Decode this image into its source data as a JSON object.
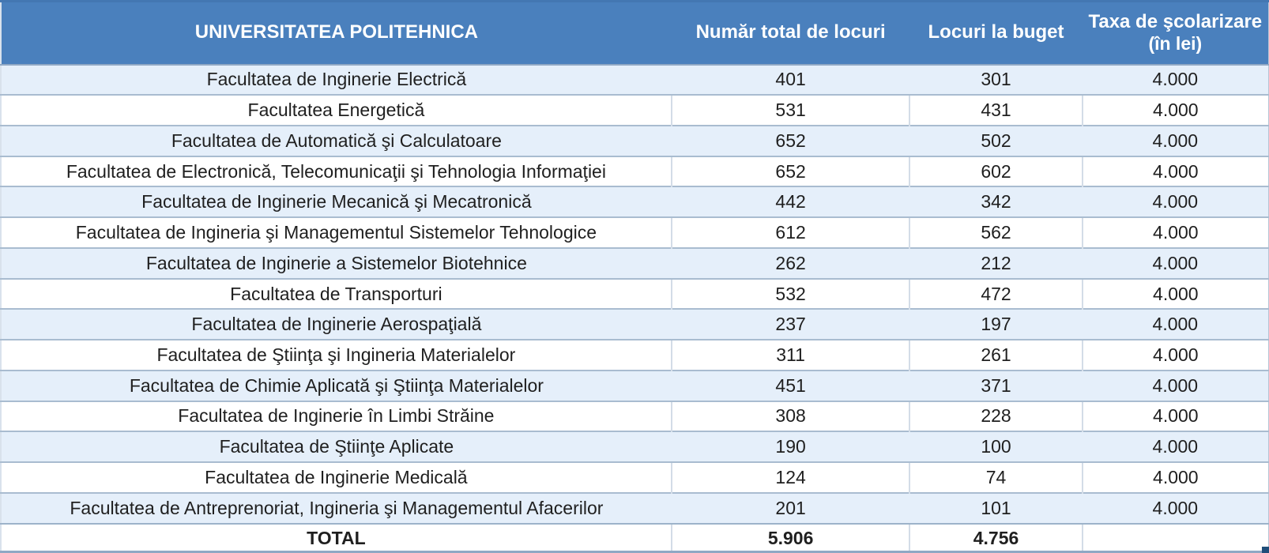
{
  "table": {
    "header": {
      "university": "UNIVERSITATEA POLITEHNICA",
      "col_total": "Număr total de locuri",
      "col_buget": "Locuri la buget",
      "col_taxa_line1": "Taxa de şcolarizare",
      "col_taxa_line2": "(în lei)"
    },
    "rows": [
      {
        "name": "Facultatea de Inginerie Electrică",
        "total": "401",
        "buget": "301",
        "taxa": "4.000"
      },
      {
        "name": "Facultatea Energetică",
        "total": "531",
        "buget": "431",
        "taxa": "4.000"
      },
      {
        "name": "Facultatea de Automatică şi Calculatoare",
        "total": "652",
        "buget": "502",
        "taxa": "4.000"
      },
      {
        "name": "Facultatea de Electronică, Telecomunicaţii şi Tehnologia Informaţiei",
        "total": "652",
        "buget": "602",
        "taxa": "4.000"
      },
      {
        "name": "Facultatea de Inginerie Mecanică şi Mecatronică",
        "total": "442",
        "buget": "342",
        "taxa": "4.000"
      },
      {
        "name": "Facultatea de Ingineria şi Managementul Sistemelor Tehnologice",
        "total": "612",
        "buget": "562",
        "taxa": "4.000"
      },
      {
        "name": "Facultatea de Inginerie a Sistemelor Biotehnice",
        "total": "262",
        "buget": "212",
        "taxa": "4.000"
      },
      {
        "name": "Facultatea de Transporturi",
        "total": "532",
        "buget": "472",
        "taxa": "4.000"
      },
      {
        "name": "Facultatea de Inginerie Aerospaţială",
        "total": "237",
        "buget": "197",
        "taxa": "4.000"
      },
      {
        "name": "Facultatea de Ştiinţa şi Ingineria Materialelor",
        "total": "311",
        "buget": "261",
        "taxa": "4.000"
      },
      {
        "name": "Facultatea de Chimie Aplicată şi Ştiinţa Materialelor",
        "total": "451",
        "buget": "371",
        "taxa": "4.000"
      },
      {
        "name": "Facultatea de Inginerie în Limbi Străine",
        "total": "308",
        "buget": "228",
        "taxa": "4.000"
      },
      {
        "name": "Facultatea de Ştiinţe Aplicate",
        "total": "190",
        "buget": "100",
        "taxa": "4.000"
      },
      {
        "name": "Facultatea de Inginerie Medicală",
        "total": "124",
        "buget": "74",
        "taxa": "4.000"
      },
      {
        "name": "Facultatea de Antreprenoriat, Ingineria şi Managementul Afacerilor",
        "total": "201",
        "buget": "101",
        "taxa": "4.000"
      }
    ],
    "total_row": {
      "label": "TOTAL",
      "total": "5.906",
      "buget": "4.756",
      "taxa": ""
    }
  },
  "colors": {
    "header_bg": "#4a80bd",
    "band_row_bg": "#e5effa",
    "white_row_bg": "#ffffff",
    "row_border": "#a9bcd0",
    "header_text": "#ffffff",
    "body_text": "#1f1f1f",
    "corner_mark": "#1f4e79"
  }
}
